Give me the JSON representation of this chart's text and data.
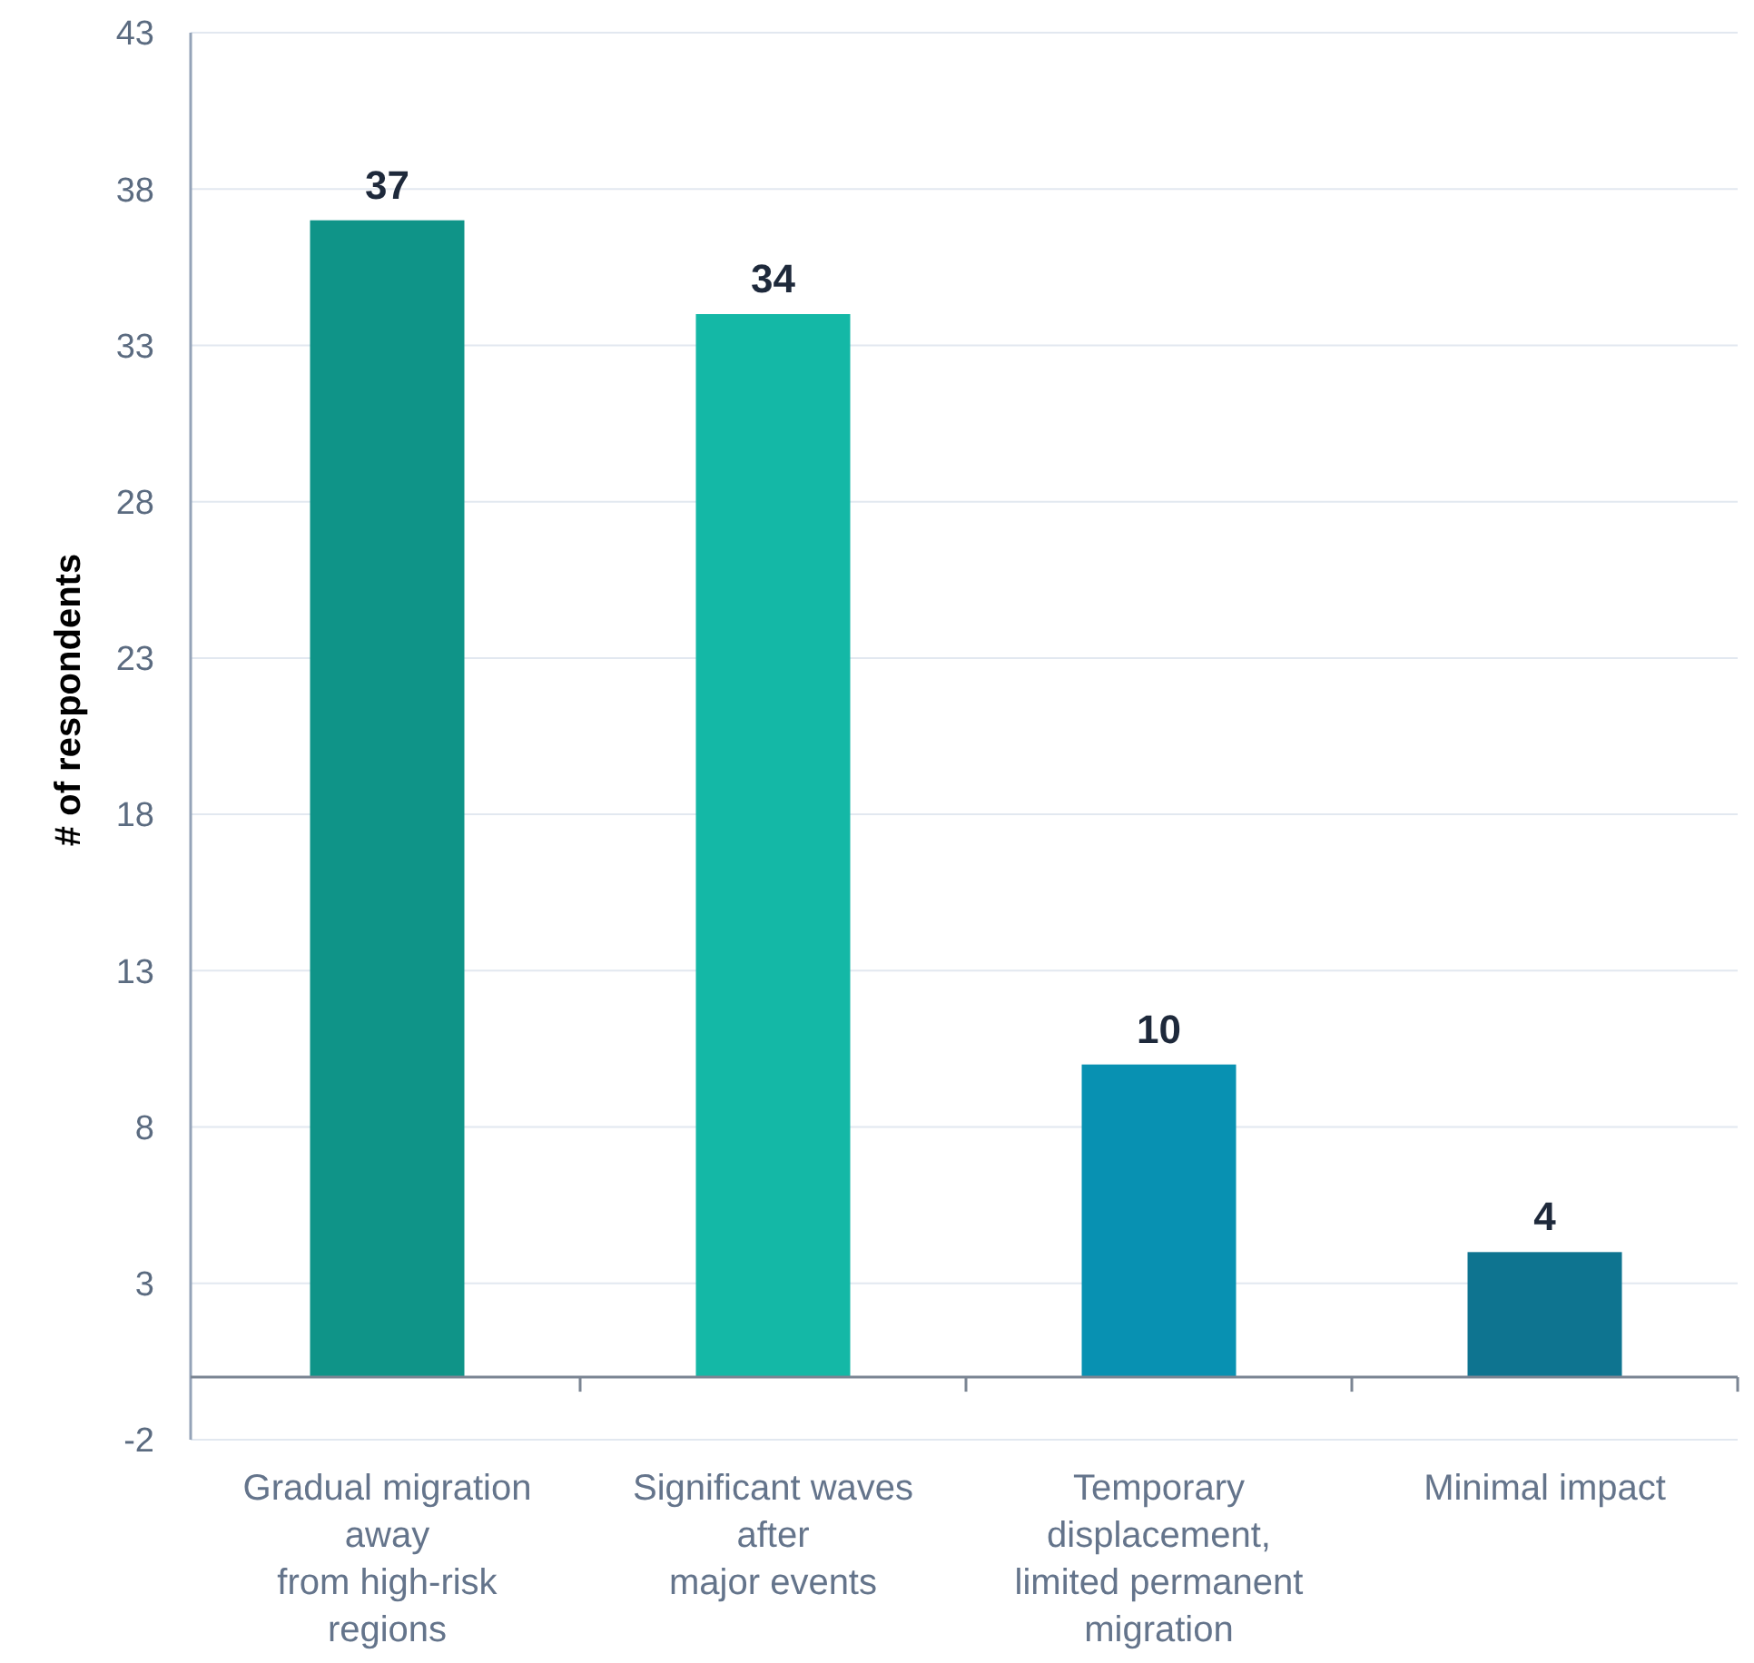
{
  "chart_data": {
    "type": "bar",
    "ylabel": "# of respondents",
    "categories": [
      "Gradual migration\naway\nfrom high-risk\nregions",
      "Significant waves\nafter\nmajor events",
      "Temporary\ndisplacement,\nlimited permanent\nmigration",
      "Minimal impact"
    ],
    "values": [
      37,
      34,
      10,
      4
    ],
    "colors": [
      "#0f9488",
      "#14b8a6",
      "#0891b2",
      "#0e7490"
    ],
    "ylim": [
      -2,
      43
    ],
    "yticks": [
      -2,
      3,
      8,
      13,
      18,
      23,
      28,
      33,
      38,
      43
    ],
    "grid": "y",
    "data_labels": true
  }
}
